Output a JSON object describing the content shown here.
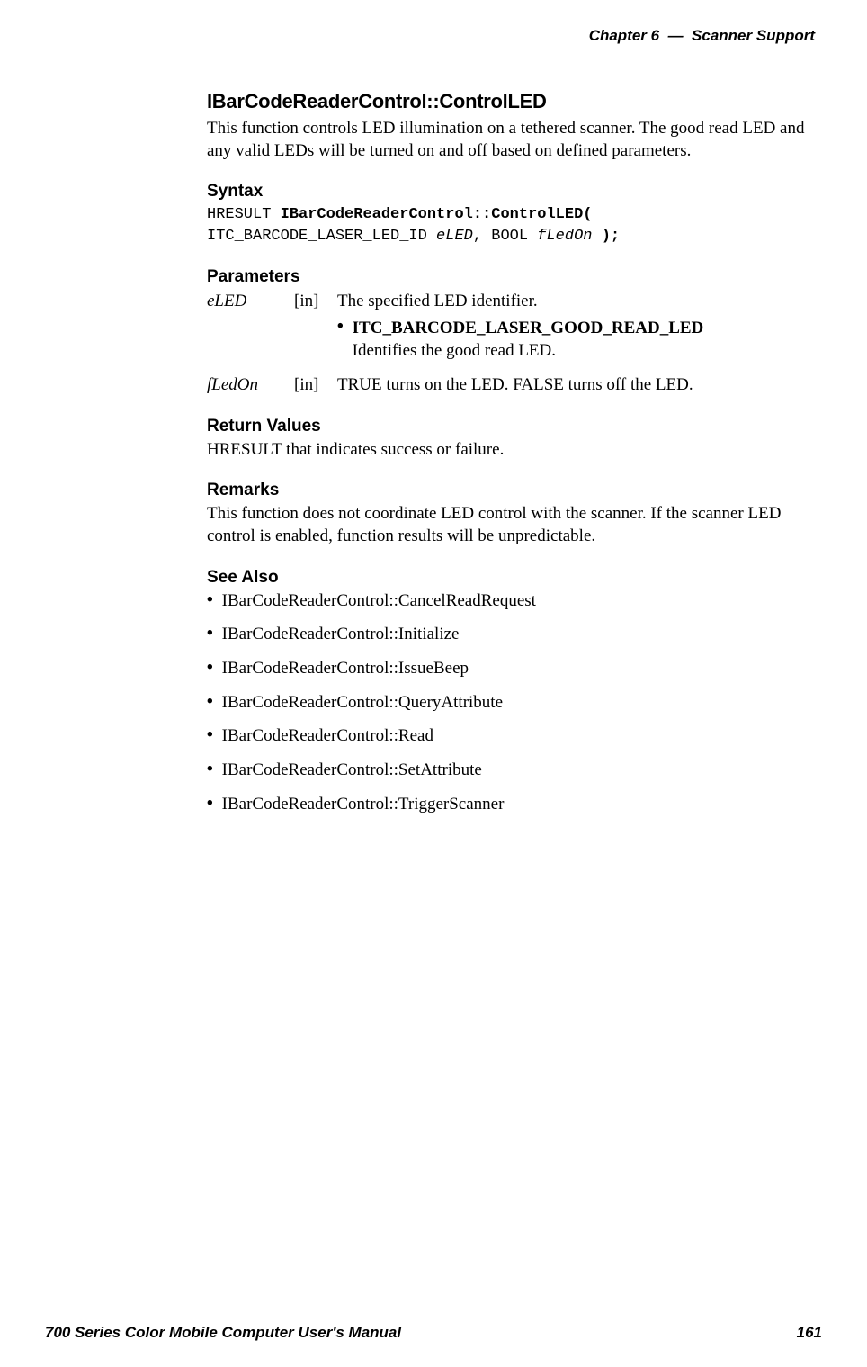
{
  "header": {
    "chapter_prefix": "Chapter",
    "chapter_num": "6",
    "separator": "—",
    "chapter_title": "Scanner Support"
  },
  "main": {
    "title": "IBarCodeReaderControl::ControlLED",
    "intro": "This function controls LED illumination on a tethered scanner. The good read LED and any valid LEDs will be turned on and off based on defined parameters.",
    "syntax": {
      "heading": "Syntax",
      "line1_plain": "HRESULT ",
      "line1_bold": "IBarCodeReaderControl::ControlLED(",
      "line2_plain1": "ITC_BARCODE_LASER_LED_ID ",
      "line2_italic1": "eLED",
      "line2_plain2": ", BOOL ",
      "line2_italic2": "fLedOn",
      "line2_bold": " );"
    },
    "parameters": {
      "heading": "Parameters",
      "rows": [
        {
          "name": "eLED",
          "dir": "[in]",
          "desc": "The specified LED identifier.",
          "subitems": [
            {
              "bold": "ITC_BARCODE_LASER_GOOD_READ_LED",
              "plain": "Identifies the good read LED."
            }
          ]
        },
        {
          "name": "fLedOn",
          "dir": "[in]",
          "desc": "TRUE turns on the LED. FALSE turns off the LED."
        }
      ]
    },
    "return_values": {
      "heading": "Return Values",
      "text": "HRESULT that indicates success or failure."
    },
    "remarks": {
      "heading": "Remarks",
      "text": "This function does not coordinate LED control with the scanner. If the scanner LED control is enabled, function results will be unpredictable."
    },
    "see_also": {
      "heading": "See Also",
      "items": [
        "IBarCodeReaderControl::CancelReadRequest",
        "IBarCodeReaderControl::Initialize",
        "IBarCodeReaderControl::IssueBeep",
        "IBarCodeReaderControl::QueryAttribute",
        "IBarCodeReaderControl::Read",
        "IBarCodeReaderControl::SetAttribute",
        "IBarCodeReaderControl::TriggerScanner"
      ]
    }
  },
  "footer": {
    "manual_title": "700 Series Color Mobile Computer User's Manual",
    "page_number": "161"
  },
  "bullet": "•"
}
